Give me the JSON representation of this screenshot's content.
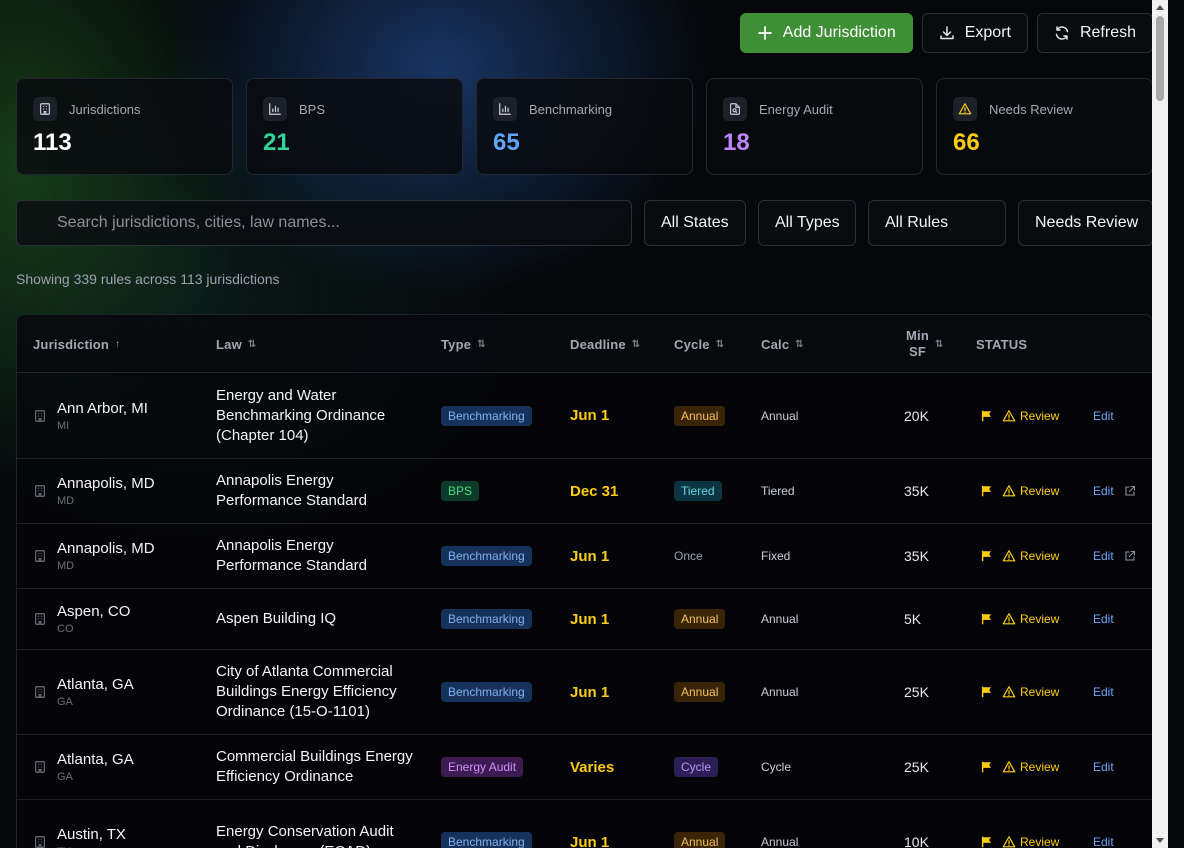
{
  "toolbar": {
    "add_label": "Add Jurisdiction",
    "export_label": "Export",
    "refresh_label": "Refresh"
  },
  "stats": [
    {
      "label": "Jurisdictions",
      "value": "113",
      "color": "#ffffff",
      "icon": "building-icon"
    },
    {
      "label": "BPS",
      "value": "21",
      "color": "#34d399",
      "icon": "bar-chart-icon"
    },
    {
      "label": "Benchmarking",
      "value": "65",
      "color": "#60a5fa",
      "icon": "bar-chart-icon"
    },
    {
      "label": "Energy Audit",
      "value": "18",
      "color": "#c084fc",
      "icon": "file-search-icon"
    },
    {
      "label": "Needs Review",
      "value": "66",
      "color": "#facc15",
      "icon": "warning-icon"
    }
  ],
  "filters": {
    "search_placeholder": "Search jurisdictions, cities, law names...",
    "state": "All States",
    "type": "All Types",
    "rules": "All Rules",
    "review": "Needs Review"
  },
  "summary": "Showing 339 rules across 113 jurisdictions",
  "table": {
    "headers": {
      "jurisdiction": "Jurisdiction",
      "law": "Law",
      "type": "Type",
      "deadline": "Deadline",
      "cycle": "Cycle",
      "calc": "Calc",
      "min_sf_1": "Min",
      "min_sf_2": "SF",
      "status": "STATUS"
    },
    "sort_asc_glyph": "↑",
    "sort_glyph": "⇅",
    "review_label": "Review",
    "edit_label": "Edit",
    "rows": [
      {
        "name": "Ann Arbor, MI",
        "state": "MI",
        "law": "Energy and Water Benchmarking Ordinance (Chapter 104)",
        "type": "Benchmarking",
        "deadline": "Jun 1",
        "cycle": "Annual",
        "calc": "Annual",
        "min_sf": "20K",
        "external_link": false
      },
      {
        "name": "Annapolis, MD",
        "state": "MD",
        "law": "Annapolis Energy Performance Standard",
        "type": "BPS",
        "deadline": "Dec 31",
        "cycle": "Tiered",
        "calc": "Tiered",
        "min_sf": "35K",
        "external_link": true
      },
      {
        "name": "Annapolis, MD",
        "state": "MD",
        "law": "Annapolis Energy Performance Standard",
        "type": "Benchmarking",
        "deadline": "Jun 1",
        "cycle": "Once",
        "calc": "Fixed",
        "min_sf": "35K",
        "external_link": true
      },
      {
        "name": "Aspen, CO",
        "state": "CO",
        "law": "Aspen Building IQ",
        "type": "Benchmarking",
        "deadline": "Jun 1",
        "cycle": "Annual",
        "calc": "Annual",
        "min_sf": "5K",
        "external_link": false
      },
      {
        "name": "Atlanta, GA",
        "state": "GA",
        "law": "City of Atlanta Commercial Buildings Energy Efficiency Ordinance (15-O-1101)",
        "type": "Benchmarking",
        "deadline": "Jun 1",
        "cycle": "Annual",
        "calc": "Annual",
        "min_sf": "25K",
        "external_link": false
      },
      {
        "name": "Atlanta, GA",
        "state": "GA",
        "law": "Commercial Buildings Energy Efficiency Ordinance",
        "type": "Energy Audit",
        "deadline": "Varies",
        "cycle": "Cycle",
        "calc": "Cycle",
        "min_sf": "25K",
        "external_link": false
      },
      {
        "name": "Austin, TX",
        "state": "TX",
        "law": "Energy Conservation Audit and Disclosure (ECAD)",
        "type": "Benchmarking",
        "deadline": "Jun 1",
        "cycle": "Annual",
        "calc": "Annual",
        "min_sf": "10K",
        "external_link": false
      }
    ]
  }
}
